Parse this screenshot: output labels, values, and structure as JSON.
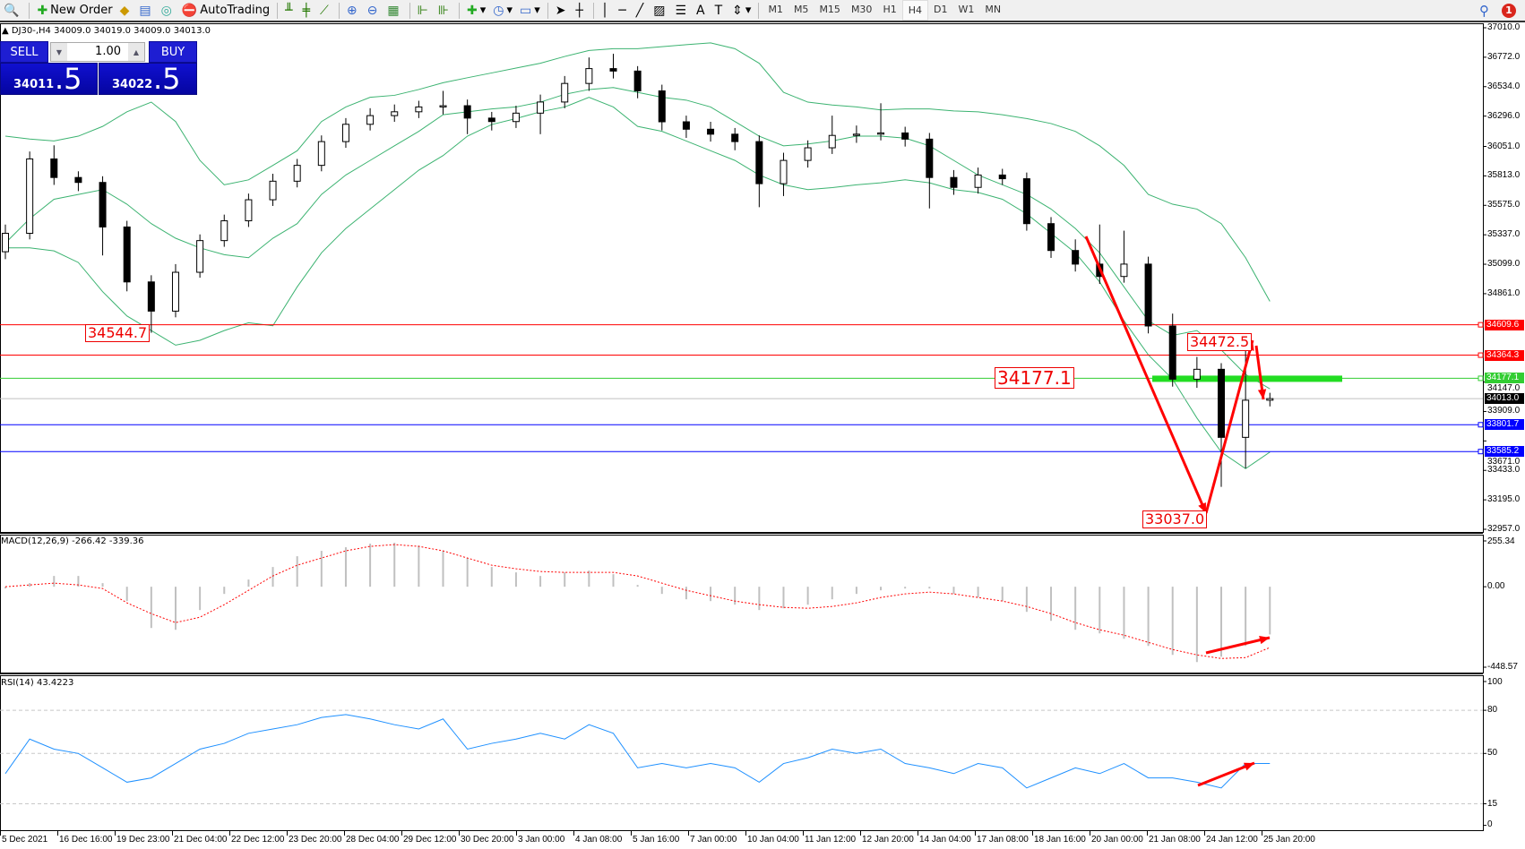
{
  "toolbar": {
    "new_order": "New Order",
    "auto_trading": "AutoTrading",
    "timeframes": [
      "M1",
      "M5",
      "M15",
      "M30",
      "H1",
      "H4",
      "D1",
      "W1",
      "MN"
    ],
    "active_timeframe": "H4",
    "notification_count": "1"
  },
  "symbol_info": "DJ30-,H4  34009.0 34019.0 34009.0 34013.0",
  "trade_panel": {
    "sell_label": "SELL",
    "buy_label": "BUY",
    "lot": "1.00",
    "sell_price_main": "34011",
    "sell_price_big": ".5",
    "buy_price_main": "34022",
    "buy_price_big": ".5"
  },
  "colors": {
    "bullish": "#ffffff",
    "bearish": "#000000",
    "bollinger": "#3cb371",
    "macd_hist": "#c0c0c0",
    "macd_signal": "#ff0000",
    "rsi": "#1e90ff",
    "resistance": "#ff0000",
    "support": "#0000ff",
    "pivot": "#32cd32",
    "annotation": "#ff0000"
  },
  "chart_data": [
    {
      "type": "candlestick",
      "symbol": "DJ30-",
      "timeframe": "H4",
      "ylim": [
        32957.0,
        37010.0
      ],
      "y_ticks": [
        "37010.0",
        "36772.0",
        "36534.0",
        "36296.0",
        "36051.0",
        "35813.0",
        "35575.0",
        "35337.0",
        "35099.0",
        "34861.0",
        "34147.0",
        "33909.0",
        "33671.0",
        "33433.0",
        "33195.0",
        "32957.0"
      ],
      "x_ticks": [
        "5 Dec 2021",
        "16 Dec 16:00",
        "19 Dec 23:00",
        "21 Dec 04:00",
        "22 Dec 12:00",
        "23 Dec 20:00",
        "28 Dec 04:00",
        "29 Dec 12:00",
        "30 Dec 20:00",
        "3 Jan 00:00",
        "4 Jan 08:00",
        "5 Jan 16:00",
        "7 Jan 00:00",
        "10 Jan 04:00",
        "11 Jan 12:00",
        "12 Jan 20:00",
        "14 Jan 04:00",
        "17 Jan 08:00",
        "18 Jan 16:00",
        "20 Jan 00:00",
        "21 Jan 08:00",
        "24 Jan 12:00",
        "25 Jan 20:00"
      ],
      "candles_ohlc": [
        [
          35200,
          35420,
          35140,
          35349
        ],
        [
          35349,
          36010,
          35300,
          35950
        ],
        [
          35950,
          36060,
          35740,
          35800
        ],
        [
          35800,
          35850,
          35690,
          35760
        ],
        [
          35760,
          35810,
          35170,
          35400
        ],
        [
          35400,
          35450,
          34880,
          34956
        ],
        [
          34956,
          35010,
          34545,
          34720
        ],
        [
          34720,
          35100,
          34670,
          35034
        ],
        [
          35034,
          35340,
          34990,
          35290
        ],
        [
          35290,
          35500,
          35240,
          35450
        ],
        [
          35450,
          35670,
          35400,
          35620
        ],
        [
          35620,
          35830,
          35570,
          35770
        ],
        [
          35770,
          35950,
          35720,
          35898
        ],
        [
          35898,
          36140,
          35850,
          36090
        ],
        [
          36090,
          36280,
          36040,
          36230
        ],
        [
          36230,
          36360,
          36180,
          36300
        ],
        [
          36300,
          36390,
          36250,
          36331
        ],
        [
          36331,
          36420,
          36280,
          36370
        ],
        [
          36370,
          36500,
          36310,
          36380
        ],
        [
          36380,
          36430,
          36150,
          36280
        ],
        [
          36280,
          36330,
          36180,
          36252
        ],
        [
          36252,
          36380,
          36200,
          36320
        ],
        [
          36320,
          36470,
          36150,
          36410
        ],
        [
          36410,
          36620,
          36360,
          36560
        ],
        [
          36560,
          36770,
          36500,
          36680
        ],
        [
          36680,
          36800,
          36600,
          36660
        ],
        [
          36660,
          36700,
          36440,
          36500
        ],
        [
          36500,
          36550,
          36180,
          36250
        ],
        [
          36250,
          36300,
          36120,
          36190
        ],
        [
          36190,
          36250,
          36090,
          36150
        ],
        [
          36150,
          36200,
          36020,
          36090
        ],
        [
          36090,
          36140,
          35560,
          35750
        ],
        [
          35750,
          36000,
          35650,
          35938
        ],
        [
          35938,
          36100,
          35880,
          36040
        ],
        [
          36040,
          36300,
          35990,
          36140
        ],
        [
          36140,
          36220,
          36080,
          36150
        ],
        [
          36150,
          36400,
          36100,
          36160
        ],
        [
          36160,
          36210,
          36050,
          36110
        ],
        [
          36110,
          36160,
          35550,
          35800
        ],
        [
          35800,
          35860,
          35660,
          35720
        ],
        [
          35720,
          35880,
          35670,
          35820
        ],
        [
          35820,
          35870,
          35740,
          35790
        ],
        [
          35790,
          35840,
          35370,
          35427
        ],
        [
          35427,
          35480,
          35150,
          35210
        ],
        [
          35210,
          35300,
          35040,
          35100
        ],
        [
          35100,
          35420,
          34940,
          35000
        ],
        [
          35000,
          35370,
          34950,
          35100
        ],
        [
          35100,
          35160,
          34540,
          34600
        ],
        [
          34600,
          34700,
          34110,
          34170
        ],
        [
          34170,
          34350,
          34100,
          34250
        ],
        [
          34250,
          34300,
          33300,
          33700
        ],
        [
          33700,
          34472,
          33450,
          34000
        ],
        [
          34000,
          34060,
          33950,
          34013
        ]
      ],
      "bollinger_upper": [
        36134,
        36111,
        36095,
        36134,
        36213,
        36331,
        36409,
        36252,
        35938,
        35741,
        35781,
        35898,
        36016,
        36252,
        36370,
        36448,
        36464,
        36511,
        36566,
        36606,
        36645,
        36684,
        36723,
        36778,
        36826,
        36841,
        36841,
        36857,
        36873,
        36888,
        36841,
        36723,
        36488,
        36409,
        36386,
        36370,
        36346,
        36354,
        36354,
        36338,
        36331,
        36307,
        36276,
        36236,
        36173,
        36056,
        35898,
        35663,
        35584,
        35545,
        35427,
        35152,
        34799
      ],
      "bollinger_middle": [
        35270,
        35467,
        35624,
        35663,
        35702,
        35584,
        35427,
        35309,
        35231,
        35176,
        35152,
        35309,
        35427,
        35663,
        35820,
        35938,
        36056,
        36173,
        36307,
        36331,
        36354,
        36370,
        36409,
        36472,
        36511,
        36527,
        36488,
        36448,
        36425,
        36370,
        36252,
        36134,
        36056,
        36071,
        36095,
        36134,
        36134,
        36118,
        36056,
        35938,
        35820,
        35741,
        35663,
        35545,
        35388,
        35191,
        34916,
        34642,
        34524,
        34563,
        34406,
        34209,
        34092
      ],
      "bollinger_lower": [
        35231,
        35231,
        35207,
        35113,
        34877,
        34681,
        34563,
        34445,
        34484,
        34563,
        34626,
        34602,
        34916,
        35191,
        35388,
        35545,
        35702,
        35859,
        35977,
        36134,
        36228,
        36276,
        36331,
        36370,
        36448,
        36370,
        36213,
        36173,
        36095,
        36016,
        35938,
        35820,
        35741,
        35702,
        35718,
        35741,
        35757,
        35781,
        35757,
        35702,
        35679,
        35624,
        35506,
        35349,
        35191,
        34956,
        34642,
        34367,
        34170,
        33856,
        33581,
        33447,
        33581
      ],
      "levels": [
        {
          "price": 34609.6,
          "label": "34609.6",
          "color": "#ff0000"
        },
        {
          "price": 34364.3,
          "label": "34364.3",
          "color": "#ff0000"
        },
        {
          "price": 34177.1,
          "label": "34177.1",
          "color": "#32cd32"
        },
        {
          "price": 34013.0,
          "label": "34013.0",
          "color": "#000000",
          "current": true
        },
        {
          "price": 33801.7,
          "label": "33801.7",
          "color": "#0000ff"
        },
        {
          "price": 33585.2,
          "label": "33585.2",
          "color": "#0000ff"
        }
      ],
      "annotations": [
        "34544.7",
        "34177.1",
        "34472.5",
        "33037.0"
      ]
    },
    {
      "type": "macd",
      "title": "MACD(12,26,9) -266.42 -339.36",
      "ylim": [
        -448.57,
        255.34
      ],
      "y_ticks": [
        "255.34",
        "0.00",
        "-448.57"
      ],
      "histogram": [
        -10,
        20,
        60,
        60,
        20,
        -80,
        -230,
        -240,
        -130,
        -40,
        40,
        110,
        170,
        200,
        220,
        240,
        245,
        230,
        200,
        160,
        110,
        80,
        60,
        80,
        90,
        70,
        10,
        -40,
        -70,
        -80,
        -100,
        -130,
        -120,
        -100,
        -70,
        -40,
        -20,
        -10,
        -10,
        -40,
        -60,
        -80,
        -140,
        -190,
        -240,
        -260,
        -290,
        -330,
        -380,
        -420,
        -390,
        -330,
        -266
      ],
      "signal": [
        0,
        10,
        20,
        10,
        -10,
        -90,
        -150,
        -200,
        -170,
        -100,
        -20,
        60,
        120,
        160,
        200,
        225,
        235,
        225,
        200,
        160,
        120,
        100,
        85,
        80,
        80,
        80,
        60,
        20,
        -20,
        -50,
        -80,
        -100,
        -115,
        -120,
        -110,
        -90,
        -60,
        -40,
        -30,
        -40,
        -60,
        -80,
        -110,
        -150,
        -200,
        -240,
        -270,
        -310,
        -350,
        -380,
        -400,
        -395,
        -339
      ]
    },
    {
      "type": "line",
      "title": "RSI(14) 43.4223",
      "ylim": [
        0,
        100
      ],
      "y_ticks": [
        "100",
        "80",
        "50",
        "15",
        "0"
      ],
      "levels": [
        80,
        50,
        15
      ],
      "values": [
        36,
        60,
        53,
        50,
        40,
        30,
        33,
        43,
        53,
        57,
        64,
        67,
        70,
        75,
        77,
        74,
        70,
        67,
        74,
        53,
        57,
        60,
        64,
        60,
        70,
        64,
        40,
        43,
        40,
        43,
        40,
        30,
        43,
        47,
        53,
        50,
        53,
        43,
        40,
        36,
        43,
        40,
        26,
        33,
        40,
        36,
        43,
        33,
        33,
        30,
        26,
        43,
        43
      ]
    }
  ]
}
